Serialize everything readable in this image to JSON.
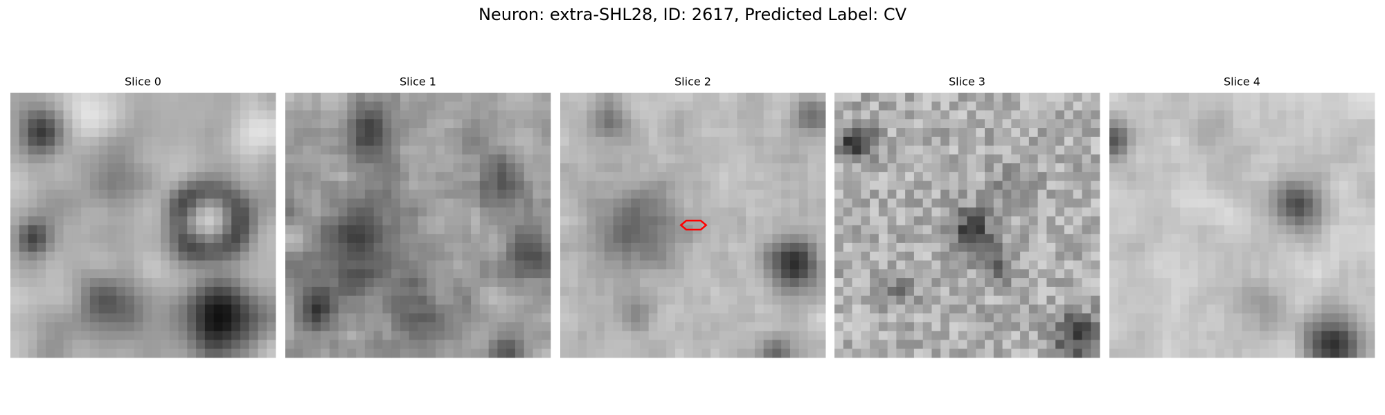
{
  "title": "Neuron: extra-SHL28, ID: 2617, Predicted Label: CV",
  "panels": [
    "Slice 0",
    "Slice 1",
    "Slice 2",
    "Slice 3",
    "Slice 4"
  ]
}
